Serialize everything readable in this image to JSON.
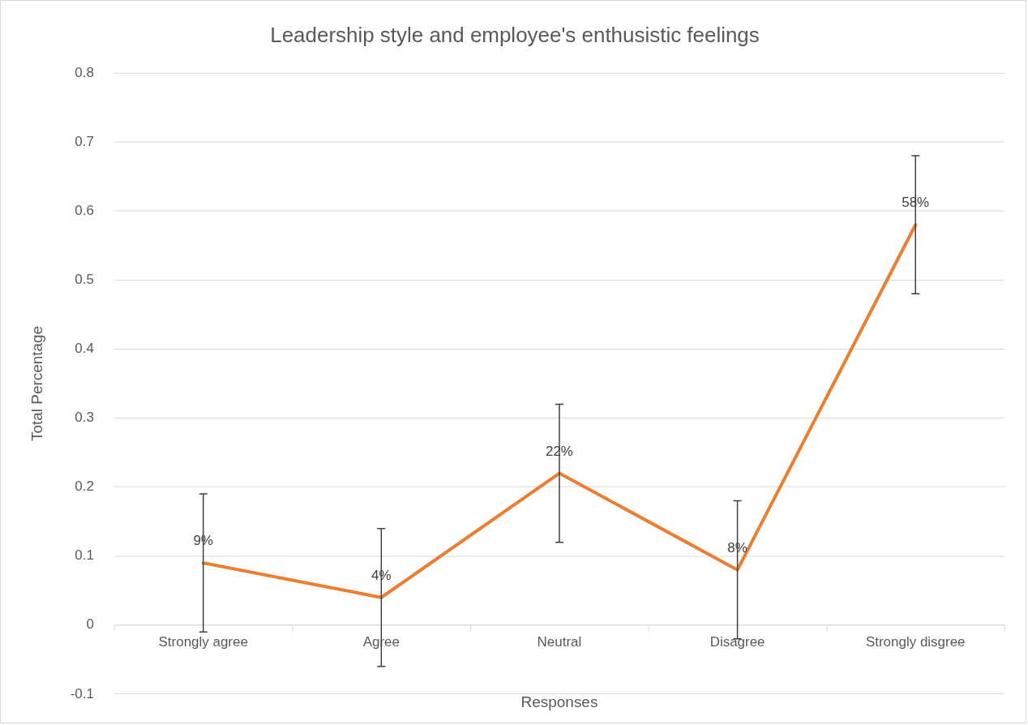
{
  "chart_data": {
    "type": "line",
    "title": "Leadership style and employee's enthusistic feelings",
    "xlabel": "Responses",
    "ylabel": "Total Percentage",
    "categories": [
      "Strongly agree",
      "Agree",
      "Neutral",
      "Disagree",
      "Strongly disgree"
    ],
    "series": [
      {
        "color": "#ed7d31",
        "values": [
          0.09,
          0.04,
          0.22,
          0.08,
          0.58
        ],
        "errors": [
          0.1,
          0.1,
          0.1,
          0.1,
          0.1
        ],
        "value_labels": [
          "9%",
          "4%",
          "22%",
          "8%",
          "58%"
        ]
      }
    ],
    "ylim": [
      -0.1,
      0.8
    ],
    "yticks": [
      -0.1,
      0,
      0.1,
      0.2,
      0.3,
      0.4,
      0.5,
      0.6,
      0.7,
      0.8
    ],
    "grid": "y",
    "legend": false,
    "marker": "none",
    "line_style": "solid"
  }
}
